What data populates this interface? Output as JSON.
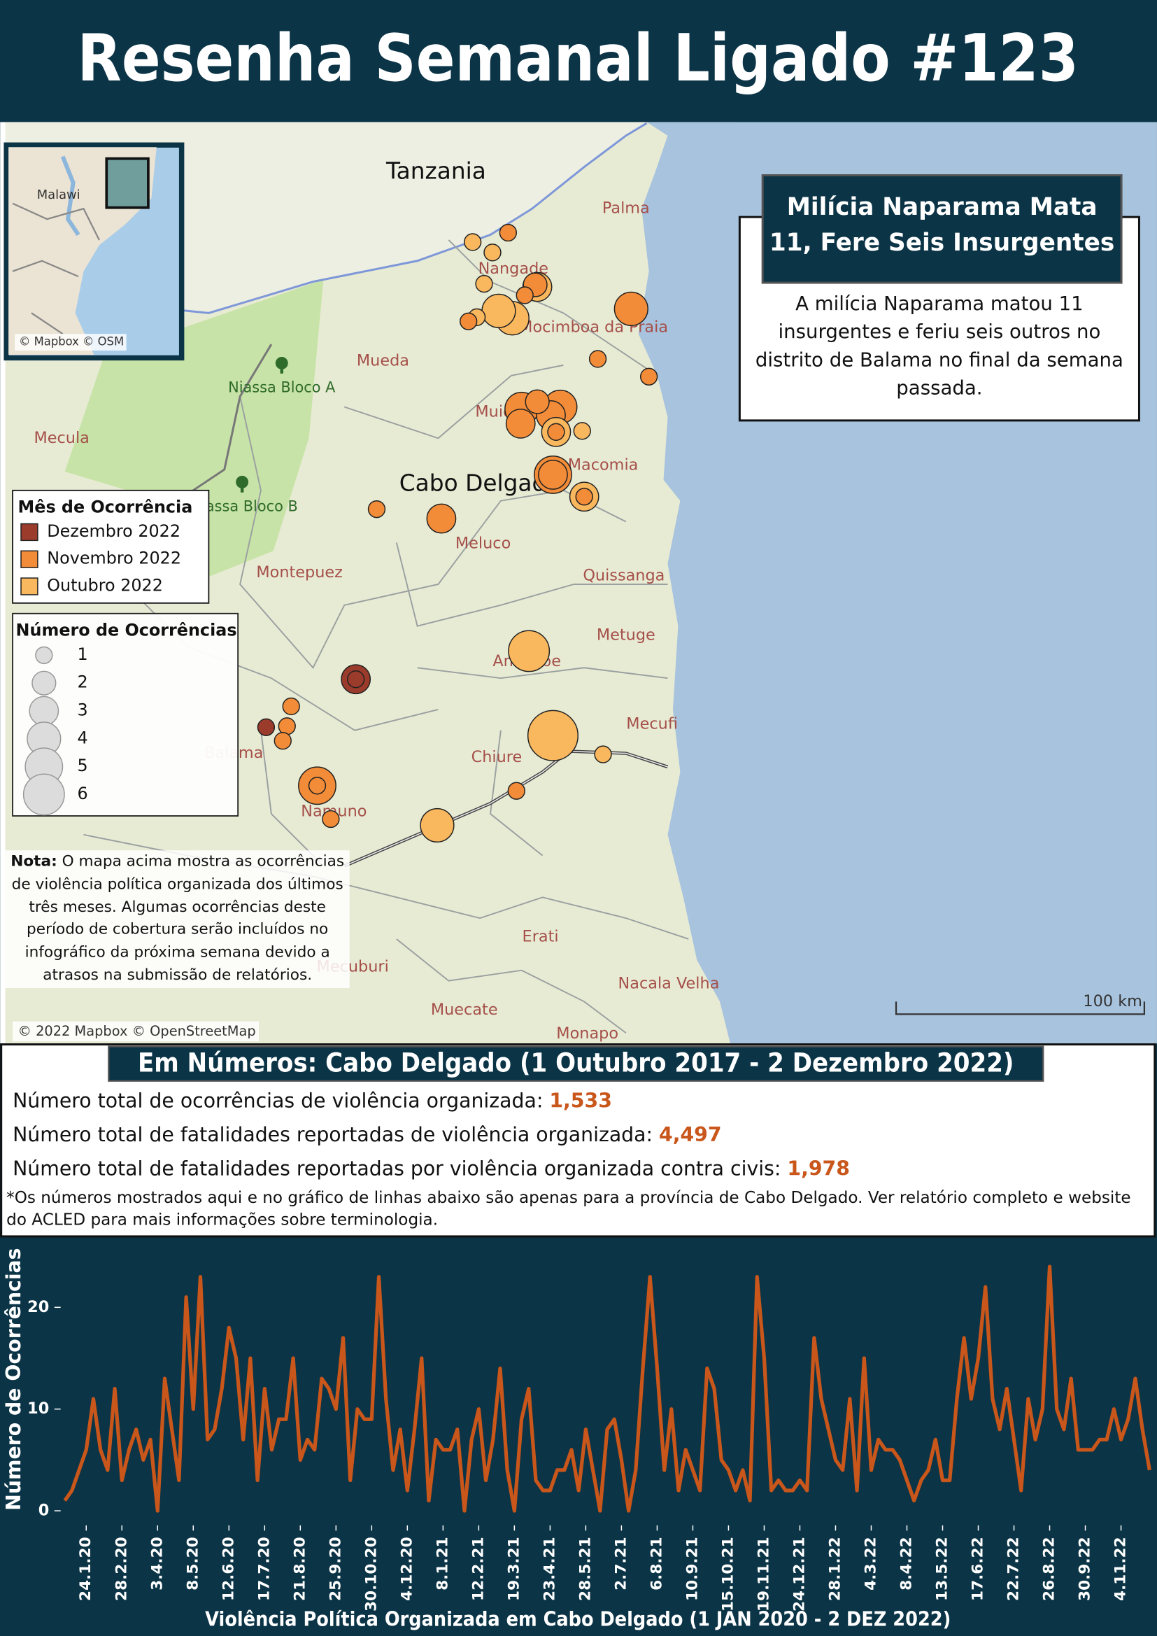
{
  "header": {
    "title": "Resenha Semanal Ligado #123"
  },
  "map": {
    "places": [
      "Tanzania",
      "Palma",
      "Nangade",
      "Mocimboa da Praia",
      "Mueda",
      "Niassa Bloco A",
      "Mecula",
      "Muidumbe",
      "Macomia",
      "Cabo Delgado",
      "Niassa Bloco B",
      "Meluco",
      "Montepuez",
      "Quissanga",
      "Metuge",
      "Ancuabe",
      "Mecufi",
      "Balama",
      "Chiure",
      "Namuno",
      "Erati",
      "Mecuburi",
      "Nacala Velha",
      "Muecate",
      "Monapo"
    ],
    "inset": {
      "places": [
        "Malawi"
      ],
      "attribution": "© Mapbox © OSM"
    },
    "attribution": "© 2022 Mapbox © OpenStreetMap",
    "scale_bar": "100 km",
    "color_legend": {
      "title": "Mês de Ocorrência",
      "items": [
        {
          "label": "Dezembro 2022",
          "color": "#9b3b2b"
        },
        {
          "label": "Novembro 2022",
          "color": "#f28c38"
        },
        {
          "label": "Outubro 2022",
          "color": "#f9b75e"
        }
      ]
    },
    "size_legend": {
      "title": "Número de Ocorrências",
      "values": [
        1,
        2,
        3,
        4,
        5,
        6
      ]
    },
    "events": [
      {
        "month": "Outubro 2022",
        "count": 9
      },
      {
        "month": "Outubro 2022",
        "count": 6
      },
      {
        "month": "Novembro 2022",
        "count": 5
      },
      {
        "month": "Novembro 2022",
        "count": 3
      },
      {
        "month": "Outubro 2022",
        "count": 4
      },
      {
        "month": "Outubro 2022",
        "count": 4
      },
      {
        "month": "Outubro 2022",
        "count": 3
      },
      {
        "month": "Novembro 2022",
        "count": 2
      },
      {
        "month": "Novembro 2022",
        "count": 4
      },
      {
        "month": "Novembro 2022",
        "count": 4
      },
      {
        "month": "Novembro 2022",
        "count": 4
      },
      {
        "month": "Novembro 2022",
        "count": 3
      },
      {
        "month": "Novembro 2022",
        "count": 3
      },
      {
        "month": "Outubro 2022",
        "count": 3
      },
      {
        "month": "Novembro 2022",
        "count": 1
      },
      {
        "month": "Novembro 2022",
        "count": 2
      },
      {
        "month": "Outubro 2022",
        "count": 3
      },
      {
        "month": "Novembro 2022",
        "count": 1
      },
      {
        "month": "Novembro 2022",
        "count": 3
      },
      {
        "month": "Novembro 2022",
        "count": 5
      },
      {
        "month": "Novembro 2022",
        "count": 1
      },
      {
        "month": "Dezembro 2022",
        "count": 3
      },
      {
        "month": "Dezembro 2022",
        "count": 1
      },
      {
        "month": "Outubro 2022",
        "count": 4
      },
      {
        "month": "Novembro 2022",
        "count": 1
      },
      {
        "month": "Outubro 2022",
        "count": 1
      },
      {
        "month": "Outubro 2022",
        "count": 1
      },
      {
        "month": "Outubro 2022",
        "count": 1
      },
      {
        "month": "Novembro 2022",
        "count": 1
      },
      {
        "month": "Outubro 2022",
        "count": 1
      },
      {
        "month": "Novembro 2022",
        "count": 1
      },
      {
        "month": "Novembro 2022",
        "count": 1
      },
      {
        "month": "Novembro 2022",
        "count": 1
      },
      {
        "month": "Outubro 2022",
        "count": 1
      },
      {
        "month": "Novembro 2022",
        "count": 1
      },
      {
        "month": "Novembro 2022",
        "count": 1
      },
      {
        "month": "Dezembro 2022",
        "count": 1
      },
      {
        "month": "Novembro 2022",
        "count": 1
      },
      {
        "month": "Novembro 2022",
        "count": 1
      },
      {
        "month": "Novembro 2022",
        "count": 1
      },
      {
        "month": "Outubro 2022",
        "count": 1
      },
      {
        "month": "Novembro 2022",
        "count": 1
      }
    ],
    "note": {
      "label": "Nota:",
      "text": "O mapa acima mostra as ocorrências de violência política organizada dos últimos três meses. Algumas ocorrências deste período de cobertura serão incluídos no infográfico da próxima semana devido a atrasos na submissão de relatórios."
    },
    "callout": {
      "title": "Milícia Naparama Mata 11, Fere Seis Insurgentes",
      "text": "A milícia Naparama matou 11 insurgentes e feriu seis outros no distrito de Balama no final da semana passada."
    }
  },
  "stats": {
    "title": "Em Números: Cabo Delgado (1 Outubro 2017 - 2 Dezembro 2022)",
    "items": [
      {
        "label": "Número total de ocorrências de violência organizada:",
        "value": "1,533"
      },
      {
        "label": "Número total de fatalidades reportadas de violência organizada:",
        "value": "4,497"
      },
      {
        "label": "Número total de fatalidades reportadas por violência organizada contra civis:",
        "value": "1,978"
      }
    ],
    "footnote": "*Os números mostrados aqui e no gráfico de linhas abaixo são apenas para a província de Cabo Delgado. Ver relatório completo e website do ACLED para mais informações sobre terminologia."
  },
  "chart_data": {
    "type": "line",
    "xlabel": "Violência Política Organizada em Cabo Delgado (1 JAN 2020 - 2 DEZ 2022)",
    "ylabel": "Número de Ocorrências",
    "color": "#c9561a",
    "ylim": [
      0,
      25
    ],
    "yticks": [
      0,
      10,
      20
    ],
    "categories": [
      null,
      null,
      null,
      "24.1.20",
      null,
      null,
      null,
      null,
      "28.2.20",
      null,
      null,
      null,
      null,
      "3.4.20",
      null,
      null,
      null,
      null,
      "8.5.20",
      null,
      null,
      null,
      null,
      "12.6.20",
      null,
      null,
      null,
      null,
      "17.7.20",
      null,
      null,
      null,
      null,
      "21.8.20",
      null,
      null,
      null,
      null,
      "25.9.20",
      null,
      null,
      null,
      null,
      "30.10.20",
      null,
      null,
      null,
      null,
      "4.12.20",
      null,
      null,
      null,
      null,
      "8.1.21",
      null,
      null,
      null,
      null,
      "12.2.21",
      null,
      null,
      null,
      null,
      "19.3.21",
      null,
      null,
      null,
      null,
      "23.4.21",
      null,
      null,
      null,
      null,
      "28.5.21",
      null,
      null,
      null,
      null,
      "2.7.21",
      null,
      null,
      null,
      null,
      "6.8.21",
      null,
      null,
      null,
      null,
      "10.9.21",
      null,
      null,
      null,
      null,
      "15.10.21",
      null,
      null,
      null,
      null,
      "19.11.21",
      null,
      null,
      null,
      null,
      "24.12.21",
      null,
      null,
      null,
      null,
      "28.1.22",
      null,
      null,
      null,
      null,
      "4.3.22",
      null,
      null,
      null,
      null,
      "8.4.22",
      null,
      null,
      null,
      null,
      "13.5.22",
      null,
      null,
      null,
      null,
      "17.6.22",
      null,
      null,
      null,
      null,
      "22.7.22",
      null,
      null,
      null,
      null,
      "26.8.22",
      null,
      null,
      null,
      null,
      "30.9.22",
      null,
      null,
      null,
      null,
      "4.11.22",
      null,
      null,
      null,
      null
    ],
    "values": [
      1,
      2,
      4,
      6,
      11,
      6,
      4,
      12,
      3,
      6,
      8,
      5,
      7,
      0,
      13,
      8,
      3,
      21,
      10,
      23,
      7,
      8,
      12,
      18,
      15,
      7,
      15,
      3,
      12,
      6,
      9,
      9,
      15,
      5,
      7,
      6,
      13,
      12,
      10,
      17,
      3,
      10,
      9,
      9,
      23,
      11,
      4,
      8,
      2,
      8,
      15,
      1,
      7,
      6,
      6,
      8,
      0,
      7,
      10,
      3,
      7,
      14,
      4,
      0,
      9,
      12,
      3,
      2,
      2,
      4,
      4,
      6,
      2,
      8,
      4,
      0,
      8,
      9,
      5,
      0,
      4,
      14,
      23,
      14,
      4,
      10,
      2,
      6,
      4,
      2,
      14,
      12,
      5,
      4,
      2,
      4,
      1,
      23,
      15,
      2,
      3,
      2,
      2,
      3,
      2,
      17,
      11,
      8,
      5,
      4,
      11,
      2,
      15,
      4,
      7,
      6,
      6,
      5,
      3,
      1,
      3,
      4,
      7,
      3,
      3,
      11,
      17,
      11,
      15,
      22,
      11,
      8,
      12,
      7,
      2,
      11,
      7,
      10,
      24,
      10,
      8,
      13,
      6,
      6,
      6,
      7,
      7,
      10,
      7,
      9,
      13,
      8,
      4
    ]
  }
}
